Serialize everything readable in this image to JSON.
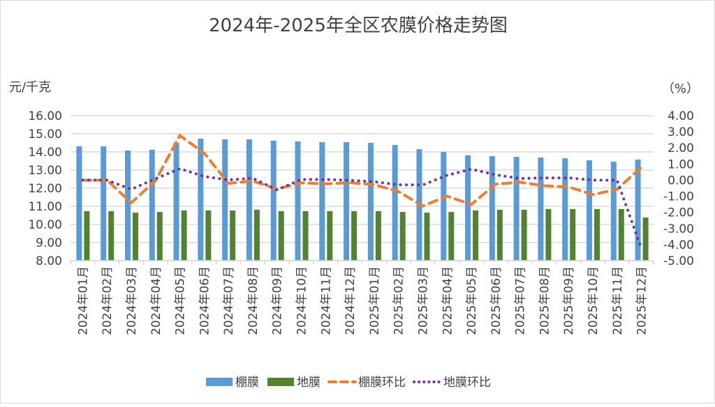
{
  "chart_data": {
    "type": "bar",
    "title": "2024年-2025年全区农膜价格走势图",
    "ylabel": "元/千克",
    "y2label": "（%）",
    "ylim": [
      8,
      16
    ],
    "y2lim": [
      -5,
      4
    ],
    "yticks": [
      "8.00",
      "9.00",
      "10.00",
      "11.00",
      "12.00",
      "13.00",
      "14.00",
      "15.00",
      "16.00"
    ],
    "y2ticks": [
      "-5.00",
      "-4.00",
      "-3.00",
      "-2.00",
      "-1.00",
      "0.00",
      "1.00",
      "2.00",
      "3.00",
      "4.00"
    ],
    "grid": true,
    "legend_position": "bottom",
    "categories": [
      "2024年01月",
      "2024年02月",
      "2024年03月",
      "2024年04月",
      "2024年05月",
      "2024年06月",
      "2024年07月",
      "2024年08月",
      "2024年09月",
      "2024年10月",
      "2024年11月",
      "2024年12月",
      "2025年01月",
      "2025年02月",
      "2025年03月",
      "2025年04月",
      "2025年05月",
      "2025年06月",
      "2025年07月",
      "2025年08月",
      "2025年09月",
      "2025年10月",
      "2025年11月",
      "2025年12月"
    ],
    "series": [
      {
        "name": "棚膜",
        "type": "bar",
        "axis": "left",
        "color": "#5b9bd5",
        "values": [
          14.31,
          14.31,
          14.08,
          14.12,
          14.5,
          14.73,
          14.69,
          14.69,
          14.62,
          14.58,
          14.54,
          14.54,
          14.5,
          14.38,
          14.15,
          14.0,
          13.81,
          13.77,
          13.73,
          13.69,
          13.65,
          13.54,
          13.46,
          13.58
        ]
      },
      {
        "name": "地膜",
        "type": "bar",
        "axis": "left",
        "color": "#548235",
        "values": [
          10.73,
          10.73,
          10.65,
          10.69,
          10.77,
          10.77,
          10.77,
          10.81,
          10.73,
          10.73,
          10.73,
          10.73,
          10.73,
          10.69,
          10.65,
          10.69,
          10.77,
          10.81,
          10.81,
          10.85,
          10.85,
          10.85,
          10.85,
          10.38
        ]
      },
      {
        "name": "棚膜环比",
        "type": "line",
        "style": "dashed",
        "axis": "right",
        "color": "#ed7d31",
        "values": [
          0,
          0,
          -1.41,
          -0.03,
          2.77,
          1.68,
          -0.2,
          -0.06,
          -0.54,
          -0.17,
          -0.23,
          -0.16,
          -0.28,
          -0.71,
          -1.61,
          -1.0,
          -1.51,
          -0.25,
          -0.13,
          -0.35,
          -0.42,
          -0.9,
          -0.57,
          0.81
        ]
      },
      {
        "name": "地膜环比",
        "type": "line",
        "style": "dotted",
        "axis": "right",
        "color": "#7030a0",
        "values": [
          0,
          0,
          -0.57,
          0.09,
          0.71,
          0.23,
          0.01,
          0.12,
          -0.61,
          0.04,
          0.04,
          -0.01,
          -0.1,
          -0.29,
          -0.3,
          0.3,
          0.68,
          0.33,
          0.1,
          0.14,
          0.14,
          0.0,
          -0.01,
          -4.25
        ]
      }
    ]
  }
}
